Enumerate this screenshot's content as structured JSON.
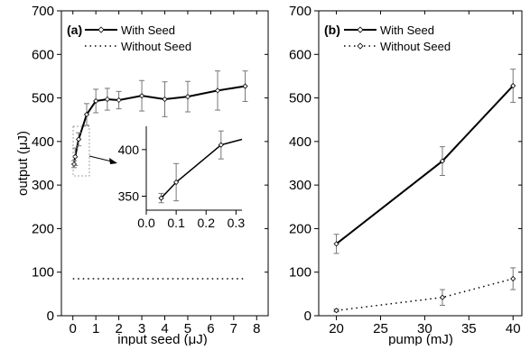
{
  "chart_data": [
    {
      "type": "line",
      "panel_label": "(a)",
      "xlabel": "input seed (μJ)",
      "ylabel": "output (μJ)",
      "xlim": [
        -0.5,
        8.5
      ],
      "ylim": [
        0,
        700
      ],
      "x_ticks": [
        "0",
        "1",
        "2",
        "3",
        "4",
        "5",
        "6",
        "7",
        "8"
      ],
      "y_ticks": [
        "0",
        "100",
        "200",
        "300",
        "400",
        "500",
        "600",
        "700"
      ],
      "legend_position": "top-left",
      "series": [
        {
          "name": "With Seed",
          "style": "solid",
          "marker": "diamond",
          "x": [
            0.05,
            0.1,
            0.25,
            0.6,
            1.0,
            1.5,
            2.0,
            3.0,
            4.0,
            5.0,
            6.3,
            7.5
          ],
          "y": [
            348,
            365,
            405,
            462,
            493,
            497,
            495,
            505,
            497,
            503,
            517,
            527
          ],
          "error": [
            8,
            20,
            15,
            25,
            27,
            25,
            20,
            35,
            40,
            35,
            45,
            35
          ]
        },
        {
          "name": "Without Seed",
          "style": "dotted",
          "marker": "none",
          "x": [
            0,
            7.5
          ],
          "y": [
            85,
            85
          ],
          "error": []
        }
      ],
      "inset": {
        "xlim": [
          0.0,
          0.32
        ],
        "ylim": [
          335,
          425
        ],
        "x_ticks": [
          "0.0",
          "0.1",
          "0.2",
          "0.3"
        ],
        "y_ticks": [
          "350",
          "400"
        ],
        "x": [
          0.05,
          0.1,
          0.25,
          0.32
        ],
        "y": [
          348,
          365,
          405,
          411
        ],
        "error": [
          5,
          20,
          15,
          0
        ]
      }
    },
    {
      "type": "line",
      "panel_label": "(b)",
      "xlabel": "pump (mJ)",
      "ylabel": "",
      "xlim": [
        18,
        41
      ],
      "ylim": [
        0,
        700
      ],
      "x_ticks": [
        "20",
        "25",
        "30",
        "35",
        "40"
      ],
      "y_ticks": [
        "0",
        "100",
        "200",
        "300",
        "400",
        "500",
        "600",
        "700"
      ],
      "legend_position": "top-left",
      "series": [
        {
          "name": "With Seed",
          "style": "solid",
          "marker": "diamond",
          "x": [
            20,
            32,
            40
          ],
          "y": [
            165,
            355,
            528
          ],
          "error": [
            22,
            33,
            38
          ]
        },
        {
          "name": "Without Seed",
          "style": "dotted",
          "marker": "diamond",
          "x": [
            20,
            32,
            40
          ],
          "y": [
            12,
            42,
            85
          ],
          "error": [
            3,
            18,
            25
          ]
        }
      ]
    }
  ]
}
